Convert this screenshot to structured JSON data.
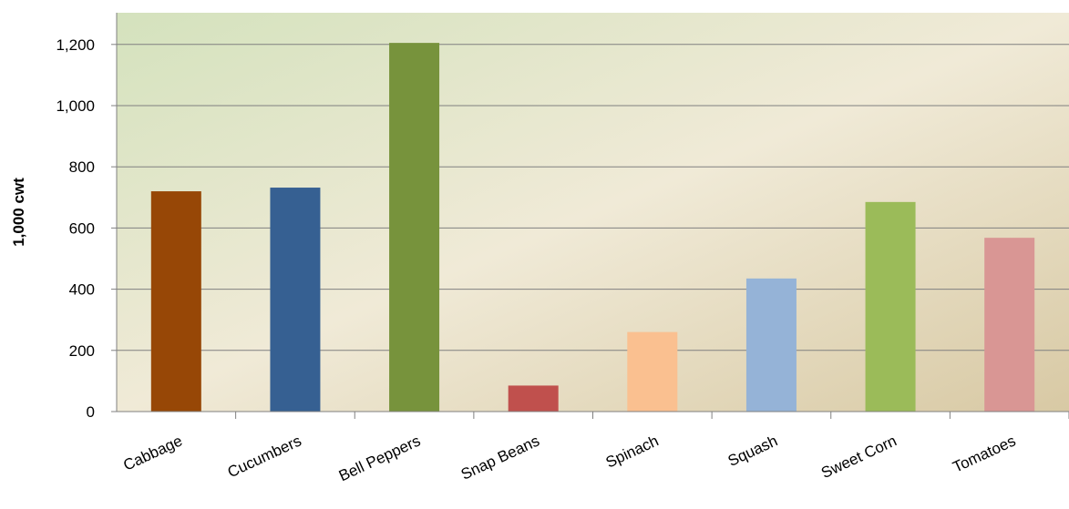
{
  "chart_data": {
    "type": "bar",
    "categories": [
      "Cabbage",
      "Cucumbers",
      "Bell Peppers",
      "Snap Beans",
      "Spinach",
      "Squash",
      "Sweet Corn",
      "Tomatoes"
    ],
    "values": [
      720,
      732,
      1205,
      85,
      260,
      435,
      685,
      568
    ],
    "colors": [
      "#974706",
      "#366092",
      "#77933C",
      "#C0504D",
      "#FAC090",
      "#95B3D7",
      "#9BBB59",
      "#D99694"
    ],
    "ylabel": "1,000 cwt",
    "xlabel": "",
    "ylim": [
      0,
      1300
    ],
    "yticks": [
      0,
      200,
      400,
      600,
      800,
      1000,
      1200
    ],
    "ytick_labels": [
      "0",
      "200",
      "400",
      "600",
      "800",
      "1,000",
      "1,200"
    ],
    "grid": true,
    "legend": false,
    "background": "gradient green to tan"
  }
}
